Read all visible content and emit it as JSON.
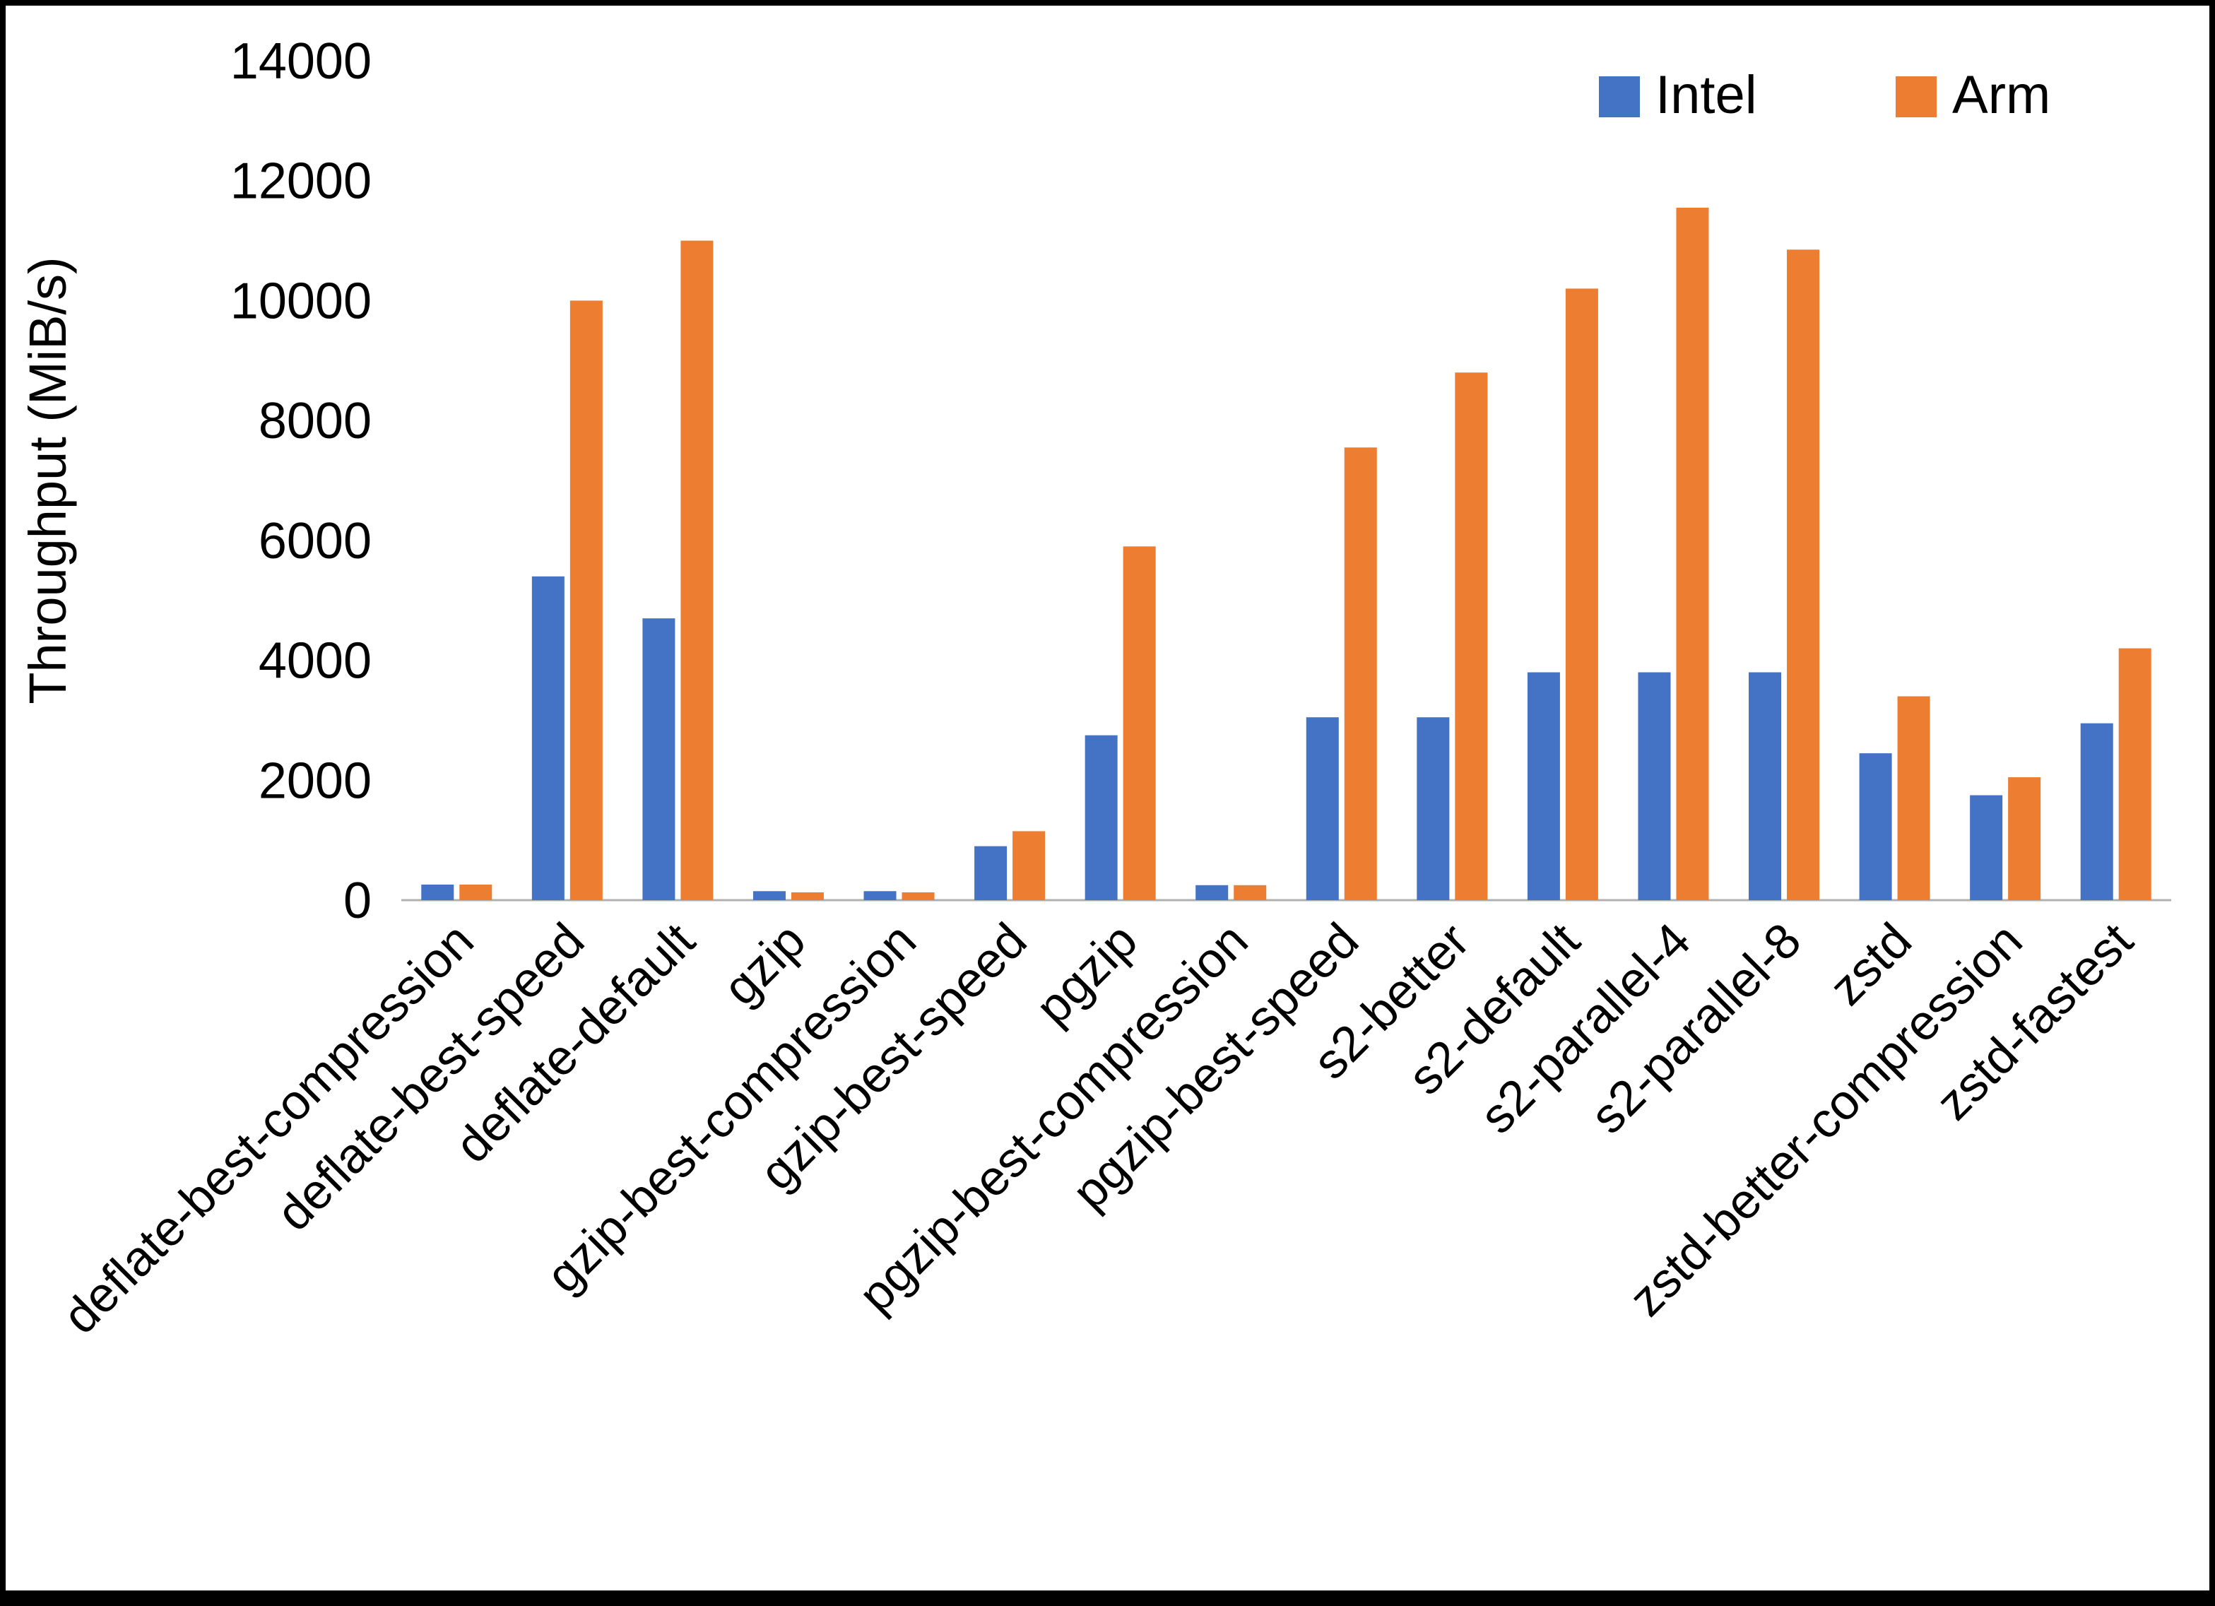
{
  "chart_data": {
    "type": "bar",
    "title": "",
    "xlabel": "",
    "ylabel": "Throughput (MiB/s)",
    "ylim": [
      0,
      14000
    ],
    "ytick_step": 2000,
    "grid": false,
    "legend_position": "top-right",
    "categories": [
      "deflate-best-compression",
      "deflate-best-speed",
      "deflate-default",
      "gzip",
      "gzip-best-compression",
      "gzip-best-speed",
      "pgzip",
      "pgzip-best-compression",
      "pgzip-best-speed",
      "s2-better",
      "s2-default",
      "s2-parallel-4",
      "s2-parallel-8",
      "zstd",
      "zstd-better-compression",
      "zstd-fastest"
    ],
    "series": [
      {
        "name": "Intel",
        "color": "#4472C4",
        "values": [
          260,
          5400,
          4700,
          150,
          150,
          900,
          2750,
          250,
          3050,
          3050,
          3800,
          3800,
          3800,
          2450,
          1750,
          2950
        ]
      },
      {
        "name": "Arm",
        "color": "#ED7D31",
        "values": [
          260,
          10000,
          11000,
          130,
          130,
          1150,
          5900,
          250,
          7550,
          8800,
          10200,
          11550,
          10850,
          3400,
          2050,
          4200
        ]
      }
    ],
    "axis_line_color": "#b0b0b0",
    "text_color": "#000000"
  }
}
